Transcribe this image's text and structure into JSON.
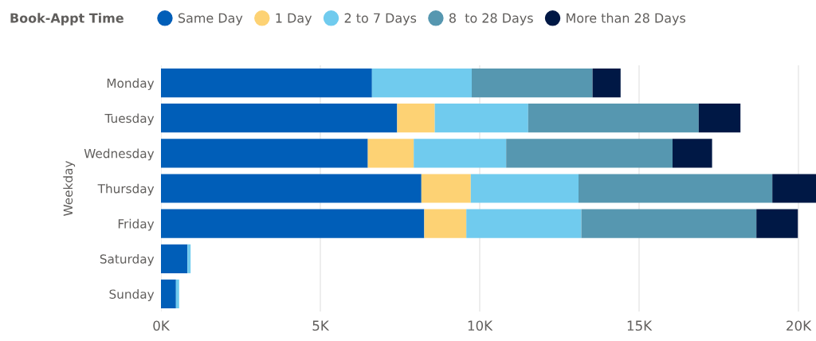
{
  "chart_data": {
    "type": "bar",
    "orientation": "horizontal",
    "stacked": true,
    "ylabel": "Weekday",
    "legend_title": "Book-Appt Time",
    "legend": "top",
    "categories": [
      "Monday",
      "Tuesday",
      "Wednesday",
      "Thursday",
      "Friday",
      "Saturday",
      "Sunday"
    ],
    "series": [
      {
        "name": "Same Day",
        "color": "#005eb8",
        "values": [
          6.62,
          7.41,
          6.49,
          8.17,
          8.26,
          0.83,
          0.47
        ]
      },
      {
        "name": "1 Day",
        "color": "#fdd274",
        "values": [
          0,
          1.18,
          1.44,
          1.55,
          1.32,
          0,
          0
        ]
      },
      {
        "name": "2 to 7 Days",
        "color": "#70cbee",
        "values": [
          3.13,
          2.93,
          2.9,
          3.38,
          3.61,
          0.1,
          0.1
        ]
      },
      {
        "name": "8  to 28 Days",
        "color": "#5697b0",
        "values": [
          3.79,
          5.35,
          5.22,
          6.08,
          5.49,
          0,
          0
        ]
      },
      {
        "name": "More than 28 Days",
        "color": "#001845",
        "values": [
          0.88,
          1.31,
          1.24,
          1.37,
          1.3,
          0,
          0
        ]
      }
    ],
    "xlim": [
      0,
      20.55
    ],
    "xticks": [
      {
        "value": 0,
        "label": "0K"
      },
      {
        "value": 5,
        "label": "5K"
      },
      {
        "value": 10,
        "label": "10K"
      },
      {
        "value": 15,
        "label": "15K"
      },
      {
        "value": 20,
        "label": "20K"
      }
    ],
    "grid": "x"
  }
}
